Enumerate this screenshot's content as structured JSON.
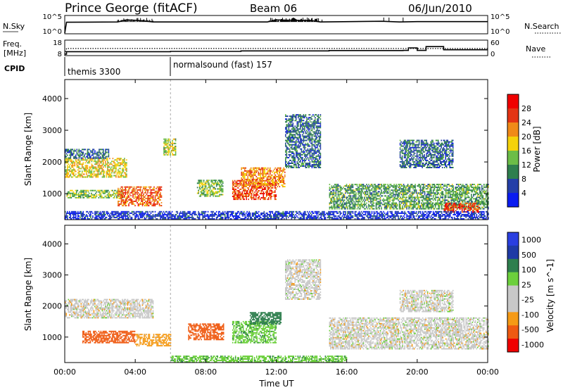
{
  "header": {
    "radar": "Prince George (fitACF)",
    "beam": "Beam 06",
    "date": "06/Jun/2010"
  },
  "strip_labels": {
    "nsky": "N.Sky",
    "nsearch": "N.Search",
    "freq": "Freq.",
    "freq_unit": "[MHz]",
    "nave": "Nave",
    "cpid": "CPID",
    "nsky_ticks": [
      "10^5",
      "10^0"
    ],
    "nsearch_ticks": [
      "10^5",
      "10^0"
    ],
    "freq_ticks": [
      "18",
      "8"
    ],
    "nave_ticks": [
      "60",
      "0"
    ]
  },
  "cpid_entries": [
    {
      "label": "themis 3300",
      "start_hour": 0.0
    },
    {
      "label": "normalsound (fast) 157",
      "start_hour": 6.0
    }
  ],
  "colors": {
    "power_scale": [
      "#0a1cf0",
      "#243fa8",
      "#2f7f4e",
      "#6cbd47",
      "#f5d20a",
      "#f08a18",
      "#e43414",
      "#f00000"
    ],
    "velocity_scale": [
      "#f00000",
      "#ef5a12",
      "#f59a16",
      "#c8c8c8",
      "#c8c8c8",
      "#6cd03c",
      "#2f7f4e",
      "#1f3ba6",
      "#2a3fe0"
    ]
  },
  "chart_data": [
    {
      "type": "line",
      "name": "nsky-nsearch-strip",
      "xlim": [
        0,
        24
      ],
      "ylabel_left": "N.Sky",
      "ylabel_right": "N.Search",
      "yticks_left": [
        "10^5",
        "10^0"
      ],
      "yticks_right": [
        "10^5",
        "10^0"
      ],
      "series": [
        {
          "values_hours": [
            0.0,
            0.1,
            3.0,
            3.5,
            4.0,
            4.5,
            5.0,
            11.5,
            12.0,
            13.0,
            14.0,
            14.5,
            18.0,
            19.0,
            20.0,
            24.0
          ],
          "values_log": [
            0.0,
            3.2,
            3.3,
            3.9,
            3.8,
            3.6,
            3.3,
            3.3,
            3.9,
            3.8,
            3.7,
            3.3,
            3.5,
            3.3,
            3.4,
            3.4
          ]
        }
      ]
    },
    {
      "type": "line",
      "name": "freq-nave-strip",
      "xlim": [
        0,
        24
      ],
      "ylabel_left": "Freq. [MHz]",
      "ylabel_right": "Nave",
      "yticks_left": [
        "18",
        "8"
      ],
      "yticks_right": [
        "60",
        "0"
      ],
      "series": [
        {
          "name": "Freq.",
          "hours": [
            0.0,
            0.1,
            6.0,
            10.0,
            15.0,
            19.2,
            19.5,
            20.0,
            20.5,
            21.0,
            21.5,
            24.0
          ],
          "mhz": [
            8.0,
            10.0,
            10.2,
            10.6,
            10.9,
            11.0,
            13.0,
            11.0,
            14.0,
            14.0,
            11.5,
            11.5
          ]
        },
        {
          "name": "Nave",
          "hours": [
            0.0,
            0.1,
            24.0
          ],
          "values": [
            0,
            27,
            27
          ]
        }
      ]
    },
    {
      "type": "heatmap",
      "name": "power",
      "xlabel": "",
      "ylabel": "Slant Range [km]",
      "xlim": [
        0,
        24
      ],
      "ylim": [
        180,
        4600
      ],
      "yticks": [
        1000,
        2000,
        3000,
        4000
      ],
      "colorbar": {
        "label": "Power [dB]",
        "ticks": [
          4,
          8,
          12,
          16,
          20,
          24,
          28
        ],
        "range": [
          0,
          32
        ]
      },
      "regions": [
        {
          "t0": 0.0,
          "t1": 3.5,
          "r0": 1500,
          "r1": 2100,
          "v": 18
        },
        {
          "t0": 0.0,
          "t1": 2.5,
          "r0": 2100,
          "r1": 2400,
          "v": 8
        },
        {
          "t0": 0.1,
          "t1": 3.3,
          "r0": 850,
          "r1": 1100,
          "v": 14
        },
        {
          "t0": 3.0,
          "t1": 5.5,
          "r0": 600,
          "r1": 1200,
          "v": 24
        },
        {
          "t0": 5.6,
          "t1": 6.3,
          "r0": 2200,
          "r1": 2700,
          "v": 16
        },
        {
          "t0": 7.5,
          "t1": 9.0,
          "r0": 900,
          "r1": 1400,
          "v": 14
        },
        {
          "t0": 9.5,
          "t1": 12.0,
          "r0": 800,
          "r1": 1400,
          "v": 26
        },
        {
          "t0": 10.0,
          "t1": 12.5,
          "r0": 1200,
          "r1": 1800,
          "v": 22
        },
        {
          "t0": 12.5,
          "t1": 14.5,
          "r0": 1800,
          "r1": 3500,
          "v": 8
        },
        {
          "t0": 15.0,
          "t1": 24.0,
          "r0": 500,
          "r1": 1300,
          "v": 12
        },
        {
          "t0": 19.0,
          "t1": 22.0,
          "r0": 1800,
          "r1": 2700,
          "v": 8
        },
        {
          "t0": 21.5,
          "t1": 23.5,
          "r0": 400,
          "r1": 700,
          "v": 26
        },
        {
          "t0": 0.0,
          "t1": 24.0,
          "r0": 180,
          "r1": 450,
          "v": 4
        }
      ]
    },
    {
      "type": "heatmap",
      "name": "velocity",
      "xlabel": "Time UT",
      "ylabel": "Slant Range [km]",
      "xlim": [
        0,
        24
      ],
      "ylim": [
        180,
        4600
      ],
      "xticks": [
        "00:00",
        "04:00",
        "08:00",
        "12:00",
        "16:00",
        "20:00",
        "00:00"
      ],
      "yticks": [
        1000,
        2000,
        3000,
        4000
      ],
      "colorbar": {
        "label": "Velocity [m s^-1]",
        "ticks": [
          1000,
          500,
          100,
          25,
          -25,
          -100,
          -500,
          -1000
        ]
      },
      "regions": [
        {
          "t0": 0.0,
          "t1": 5.0,
          "r0": 1600,
          "r1": 2200,
          "v": 0
        },
        {
          "t0": 1.0,
          "t1": 4.0,
          "r0": 800,
          "r1": 1200,
          "v": -200
        },
        {
          "t0": 4.0,
          "t1": 6.0,
          "r0": 700,
          "r1": 1100,
          "v": -50
        },
        {
          "t0": 7.0,
          "t1": 9.0,
          "r0": 900,
          "r1": 1400,
          "v": -300
        },
        {
          "t0": 9.5,
          "t1": 12.0,
          "r0": 800,
          "r1": 1500,
          "v": 80
        },
        {
          "t0": 10.5,
          "t1": 12.3,
          "r0": 1400,
          "r1": 1800,
          "v": 400
        },
        {
          "t0": 12.5,
          "t1": 14.5,
          "r0": 2200,
          "r1": 3500,
          "v": 0
        },
        {
          "t0": 15.0,
          "t1": 24.0,
          "r0": 600,
          "r1": 1600,
          "v": 0
        },
        {
          "t0": 19.0,
          "t1": 22.0,
          "r0": 1800,
          "r1": 2500,
          "v": 0
        },
        {
          "t0": 6.0,
          "t1": 16.0,
          "r0": 180,
          "r1": 400,
          "v": 80
        }
      ]
    }
  ]
}
